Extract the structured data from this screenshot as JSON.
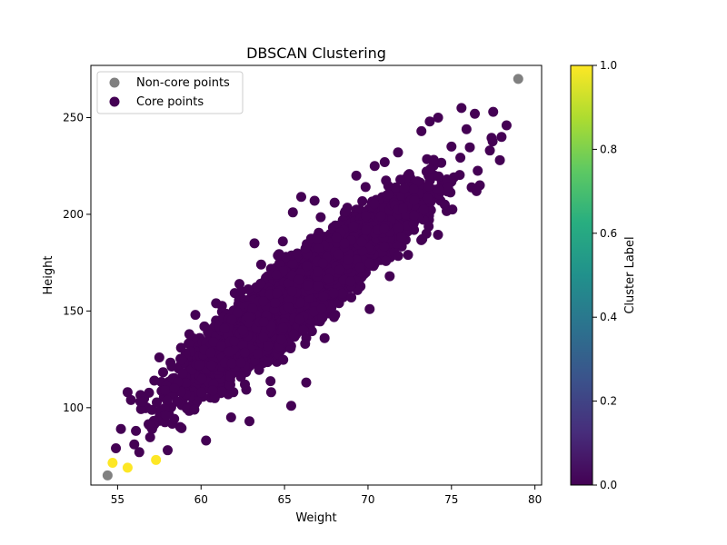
{
  "chart_data": {
    "type": "scatter",
    "title": "DBSCAN Clustering",
    "xlabel": "Weight",
    "ylabel": "Height",
    "xlim": [
      53.4,
      80.4
    ],
    "ylim": [
      60,
      277
    ],
    "x_ticks": [
      55,
      60,
      65,
      70,
      75,
      80
    ],
    "y_ticks": [
      100,
      150,
      200,
      250
    ],
    "grid": false,
    "legend_position": "top-left",
    "legend": [
      {
        "label": "Non-core points",
        "color": "#808080"
      },
      {
        "label": "Core points",
        "color": "#440154"
      }
    ],
    "colorbar": {
      "label": "Cluster Label",
      "range": [
        0.0,
        1.0
      ],
      "ticks": [
        "0.0",
        "0.2",
        "0.4",
        "0.6",
        "0.8",
        "1.0"
      ],
      "colormap": "viridis"
    },
    "density_note": "Approximately 5,000 core points spread along a diagonal band following Height ≈ 6.7 × Weight − 282, with spread of about ±3.2 in Weight and ±22 in Height.",
    "series": [
      {
        "name": "Non-core points",
        "color": "#808080",
        "points": [
          [
            54.4,
            65
          ],
          [
            79.0,
            270
          ]
        ]
      },
      {
        "name": "Core points",
        "cluster": 1,
        "color": "#fde725",
        "points": [
          [
            54.7,
            71.5
          ],
          [
            55.6,
            69
          ],
          [
            57.3,
            73
          ]
        ]
      },
      {
        "name": "Core points",
        "cluster": 0,
        "color": "#440154",
        "points": [
          [
            54.9,
            79
          ],
          [
            55.2,
            89
          ],
          [
            55.6,
            108
          ],
          [
            55.8,
            104
          ],
          [
            56.1,
            88
          ],
          [
            56.0,
            81
          ],
          [
            56.3,
            77
          ],
          [
            56.9,
            91
          ],
          [
            57.2,
            114
          ],
          [
            57.5,
            126
          ],
          [
            57.9,
            96
          ],
          [
            58.0,
            78
          ],
          [
            58.4,
            110
          ],
          [
            58.8,
            131
          ],
          [
            59.3,
            138
          ],
          [
            59.6,
            99
          ],
          [
            60.2,
            142
          ],
          [
            60.3,
            83
          ],
          [
            60.9,
            154
          ],
          [
            61.4,
            141
          ],
          [
            61.8,
            95
          ],
          [
            62.3,
            164
          ],
          [
            62.5,
            140
          ],
          [
            62.9,
            93
          ],
          [
            63.2,
            185
          ],
          [
            63.6,
            174
          ],
          [
            64.0,
            132
          ],
          [
            64.2,
            108
          ],
          [
            64.9,
            186
          ],
          [
            65.5,
            201
          ],
          [
            65.4,
            101
          ],
          [
            66.0,
            209
          ],
          [
            66.3,
            113
          ],
          [
            66.8,
            207
          ],
          [
            67.0,
            163
          ],
          [
            67.4,
            136
          ],
          [
            68.0,
            206
          ],
          [
            68.6,
            185
          ],
          [
            69.0,
            157
          ],
          [
            69.3,
            220
          ],
          [
            70.1,
            151
          ],
          [
            70.4,
            225
          ],
          [
            71.0,
            227
          ],
          [
            71.3,
            168
          ],
          [
            71.8,
            232
          ],
          [
            72.1,
            203
          ],
          [
            72.4,
            179
          ],
          [
            73.2,
            243
          ],
          [
            73.5,
            190
          ],
          [
            73.7,
            248
          ],
          [
            74.2,
            250
          ],
          [
            74.8,
            214
          ],
          [
            75.0,
            235
          ],
          [
            75.6,
            255
          ],
          [
            75.9,
            244
          ],
          [
            76.4,
            252
          ],
          [
            76.7,
            215
          ],
          [
            77.3,
            233
          ],
          [
            77.5,
            253
          ],
          [
            77.9,
            228
          ],
          [
            78.3,
            246
          ],
          [
            78.0,
            240
          ],
          [
            76.5,
            212
          ],
          [
            74.6,
            205
          ]
        ]
      }
    ]
  }
}
